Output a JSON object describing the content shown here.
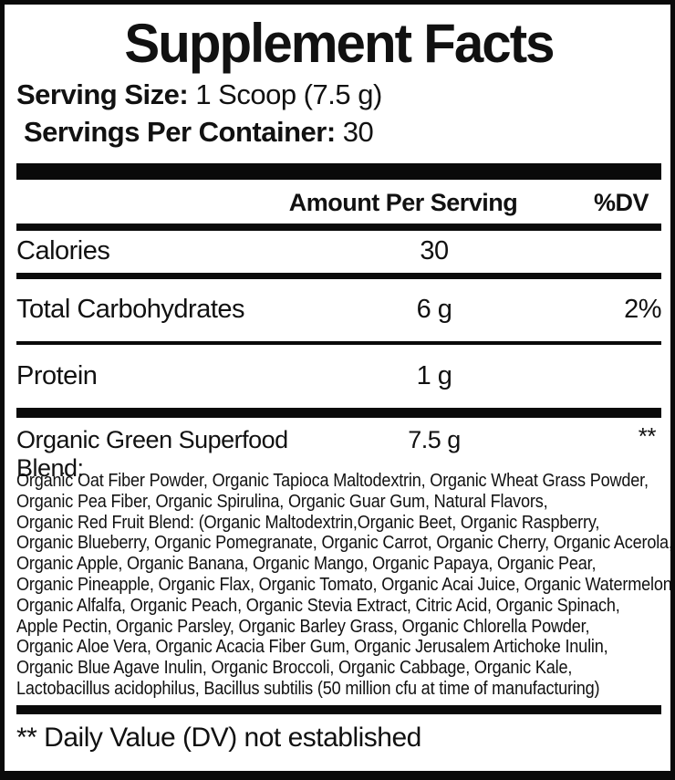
{
  "label": {
    "title": "Supplement Facts",
    "serving_size": {
      "label": "Serving Size:",
      "value": "1 Scoop (7.5 g)"
    },
    "servings_per_container": {
      "label": "Servings Per Container:",
      "value": "30"
    },
    "table": {
      "amount_header": "Amount Per Serving",
      "dv_header": "%DV",
      "rows": [
        {
          "name": "Calories",
          "amount": "30",
          "dv": ""
        },
        {
          "name": "Total Carbohydrates",
          "amount": "6 g",
          "dv": "2%"
        },
        {
          "name": "Protein",
          "amount": "1 g",
          "dv": ""
        }
      ],
      "blend_row": {
        "name": "Organic Green Superfood Blend:",
        "amount": "7.5 g",
        "dv": "**"
      }
    },
    "ingredients_lines": [
      "Organic Oat Fiber Powder, Organic Tapioca Maltodextrin, Organic Wheat Grass Powder,",
      "Organic Pea Fiber, Organic Spirulina, Organic Guar Gum, Natural Flavors,",
      "Organic Red Fruit Blend: (Organic Maltodextrin,Organic Beet, Organic Raspberry,",
      "Organic Blueberry, Organic Pomegranate, Organic Carrot, Organic Cherry, Organic Acerola,",
      "Organic Apple, Organic Banana, Organic Mango, Organic Papaya, Organic Pear,",
      "Organic Pineapple, Organic Flax, Organic Tomato, Organic Acai Juice, Organic Watermelon),",
      "Organic Alfalfa, Organic Peach, Organic Stevia Extract, Citric Acid, Organic Spinach,",
      "Apple Pectin, Organic Parsley, Organic Barley Grass, Organic Chlorella Powder,",
      "Organic Aloe Vera, Organic Acacia Fiber Gum, Organic Jerusalem Artichoke Inulin,",
      "Organic Blue Agave Inulin, Organic Broccoli, Organic Cabbage, Organic Kale,",
      "Lactobacillus acidophilus, Bacillus subtilis (50 million cfu at time of manufacturing)"
    ],
    "footnote": "** Daily Value (DV) not established"
  },
  "colors": {
    "text": "#111111",
    "background": "#ffffff",
    "rule": "#0a0a0a"
  }
}
